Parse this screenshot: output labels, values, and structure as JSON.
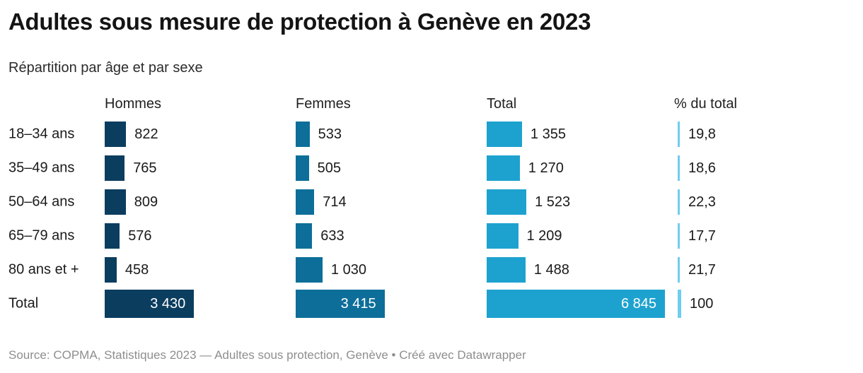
{
  "title": "Adultes sous mesure de protection à Genève en 2023",
  "subtitle": "Répartition par âge et par sexe",
  "columns": {
    "hommes": "Hommes",
    "femmes": "Femmes",
    "total": "Total",
    "pct": "% du total"
  },
  "rows": [
    {
      "label": "18–34 ans",
      "hommes": 822,
      "hommes_fmt": "822",
      "femmes": 533,
      "femmes_fmt": "533",
      "total": 1355,
      "total_fmt": "1 355",
      "pct": 19.8,
      "pct_fmt": "19,8"
    },
    {
      "label": "35–49 ans",
      "hommes": 765,
      "hommes_fmt": "765",
      "femmes": 505,
      "femmes_fmt": "505",
      "total": 1270,
      "total_fmt": "1 270",
      "pct": 18.6,
      "pct_fmt": "18,6"
    },
    {
      "label": "50–64 ans",
      "hommes": 809,
      "hommes_fmt": "809",
      "femmes": 714,
      "femmes_fmt": "714",
      "total": 1523,
      "total_fmt": "1 523",
      "pct": 22.3,
      "pct_fmt": "22,3"
    },
    {
      "label": "65–79 ans",
      "hommes": 576,
      "hommes_fmt": "576",
      "femmes": 633,
      "femmes_fmt": "633",
      "total": 1209,
      "total_fmt": "1 209",
      "pct": 17.7,
      "pct_fmt": "17,7"
    },
    {
      "label": "80 ans et +",
      "hommes": 458,
      "hommes_fmt": "458",
      "femmes": 1030,
      "femmes_fmt": "1 030",
      "total": 1488,
      "total_fmt": "1 488",
      "pct": 21.7,
      "pct_fmt": "21,7"
    },
    {
      "label": "Total",
      "hommes": 3430,
      "hommes_fmt": "3 430",
      "femmes": 3415,
      "femmes_fmt": "3 415",
      "total": 6845,
      "total_fmt": "6 845",
      "pct": 100,
      "pct_fmt": "100"
    }
  ],
  "chart_data": {
    "type": "bar",
    "title": "Adultes sous mesure de protection à Genève en 2023",
    "subtitle": "Répartition par âge et par sexe",
    "categories": [
      "18–34 ans",
      "35–49 ans",
      "50–64 ans",
      "65–79 ans",
      "80 ans et +",
      "Total"
    ],
    "series": [
      {
        "name": "Hommes",
        "values": [
          822,
          765,
          809,
          576,
          458,
          3430
        ]
      },
      {
        "name": "Femmes",
        "values": [
          533,
          505,
          714,
          633,
          1030,
          3415
        ]
      },
      {
        "name": "Total",
        "values": [
          1355,
          1270,
          1523,
          1209,
          1488,
          6845
        ]
      },
      {
        "name": "% du total",
        "values": [
          19.8,
          18.6,
          22.3,
          17.7,
          21.7,
          100
        ]
      }
    ],
    "layout": "table of horizontal bars, one column per series, bars scaled to value, grid off, no axes"
  },
  "colors": {
    "hommes": "#0b3d5f",
    "femmes": "#0d6e99",
    "total": "#1da2cf",
    "pct": "#6fcdf0",
    "text": "#1a1a1a",
    "footer_text": "#8e8e8e"
  },
  "footer": {
    "source_label": "Source:",
    "source": "COPMA, Statistiques 2023",
    "dash": "—",
    "notes": "Adultes sous protection, Genève",
    "bullet": "•",
    "credit": "Créé avec Datawrapper"
  }
}
